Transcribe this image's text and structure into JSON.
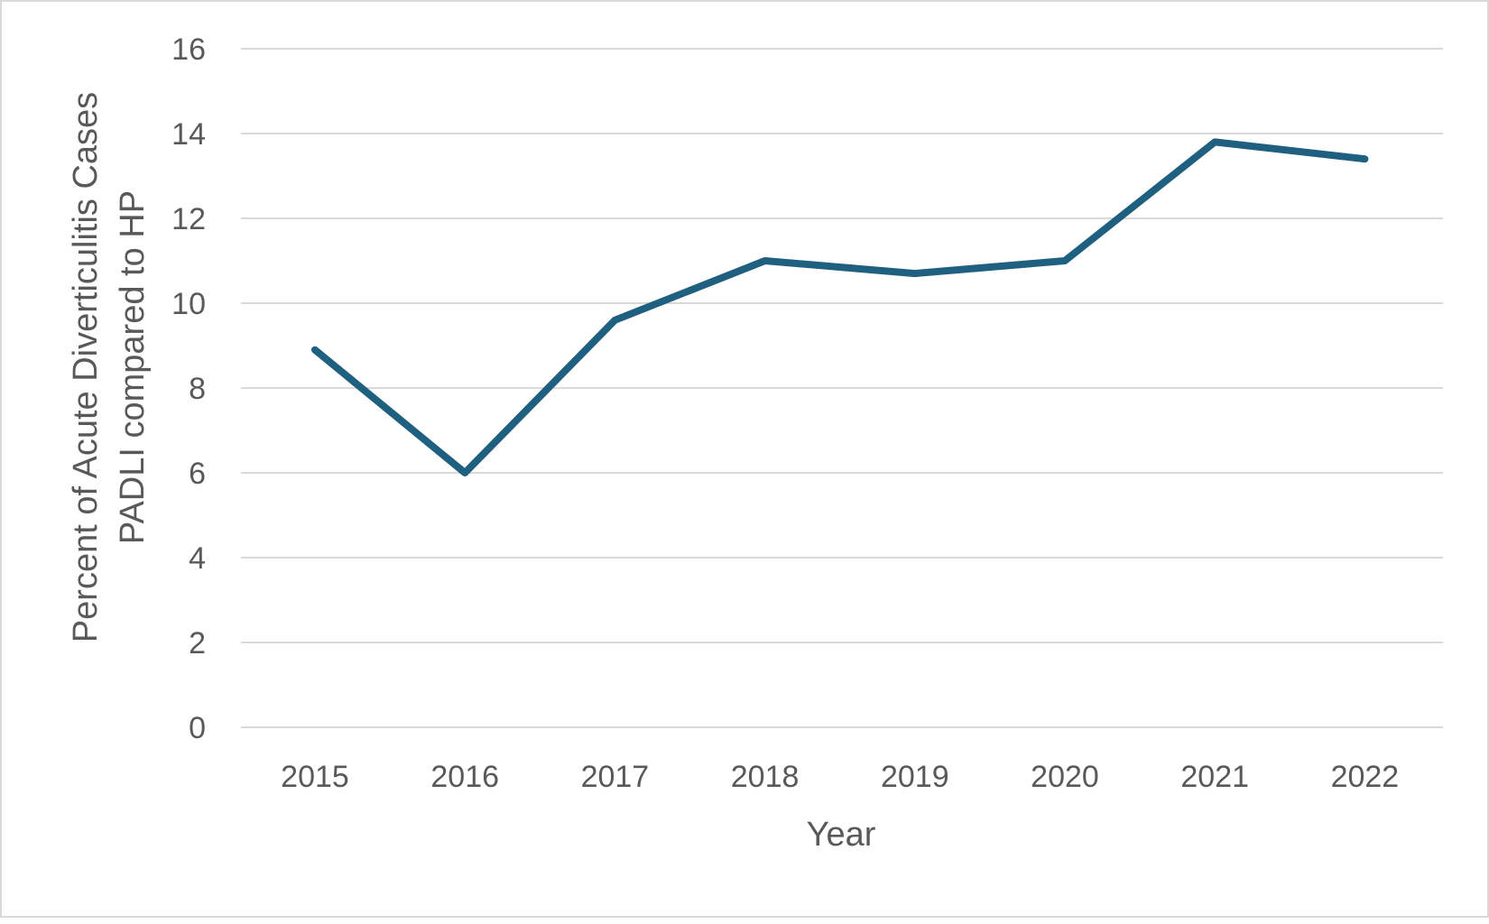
{
  "chart_data": {
    "type": "line",
    "title": "",
    "xlabel": "Year",
    "ylabel_line1": "Percent of Acute Diverticulitis Cases",
    "ylabel_line2": "PADLI compared to HP",
    "categories": [
      "2015",
      "2016",
      "2017",
      "2018",
      "2019",
      "2020",
      "2021",
      "2022"
    ],
    "series": [
      {
        "values": [
          8.9,
          6.0,
          9.6,
          11.0,
          10.7,
          11.0,
          13.8,
          13.4
        ]
      }
    ],
    "ylim": [
      0,
      16
    ],
    "yticks": [
      0,
      2,
      4,
      6,
      8,
      10,
      12,
      14,
      16
    ],
    "grid": true,
    "legend": "none",
    "colors": {
      "line": "#1f5f7f",
      "grid": "#d9d9d9",
      "text": "#595959"
    }
  }
}
